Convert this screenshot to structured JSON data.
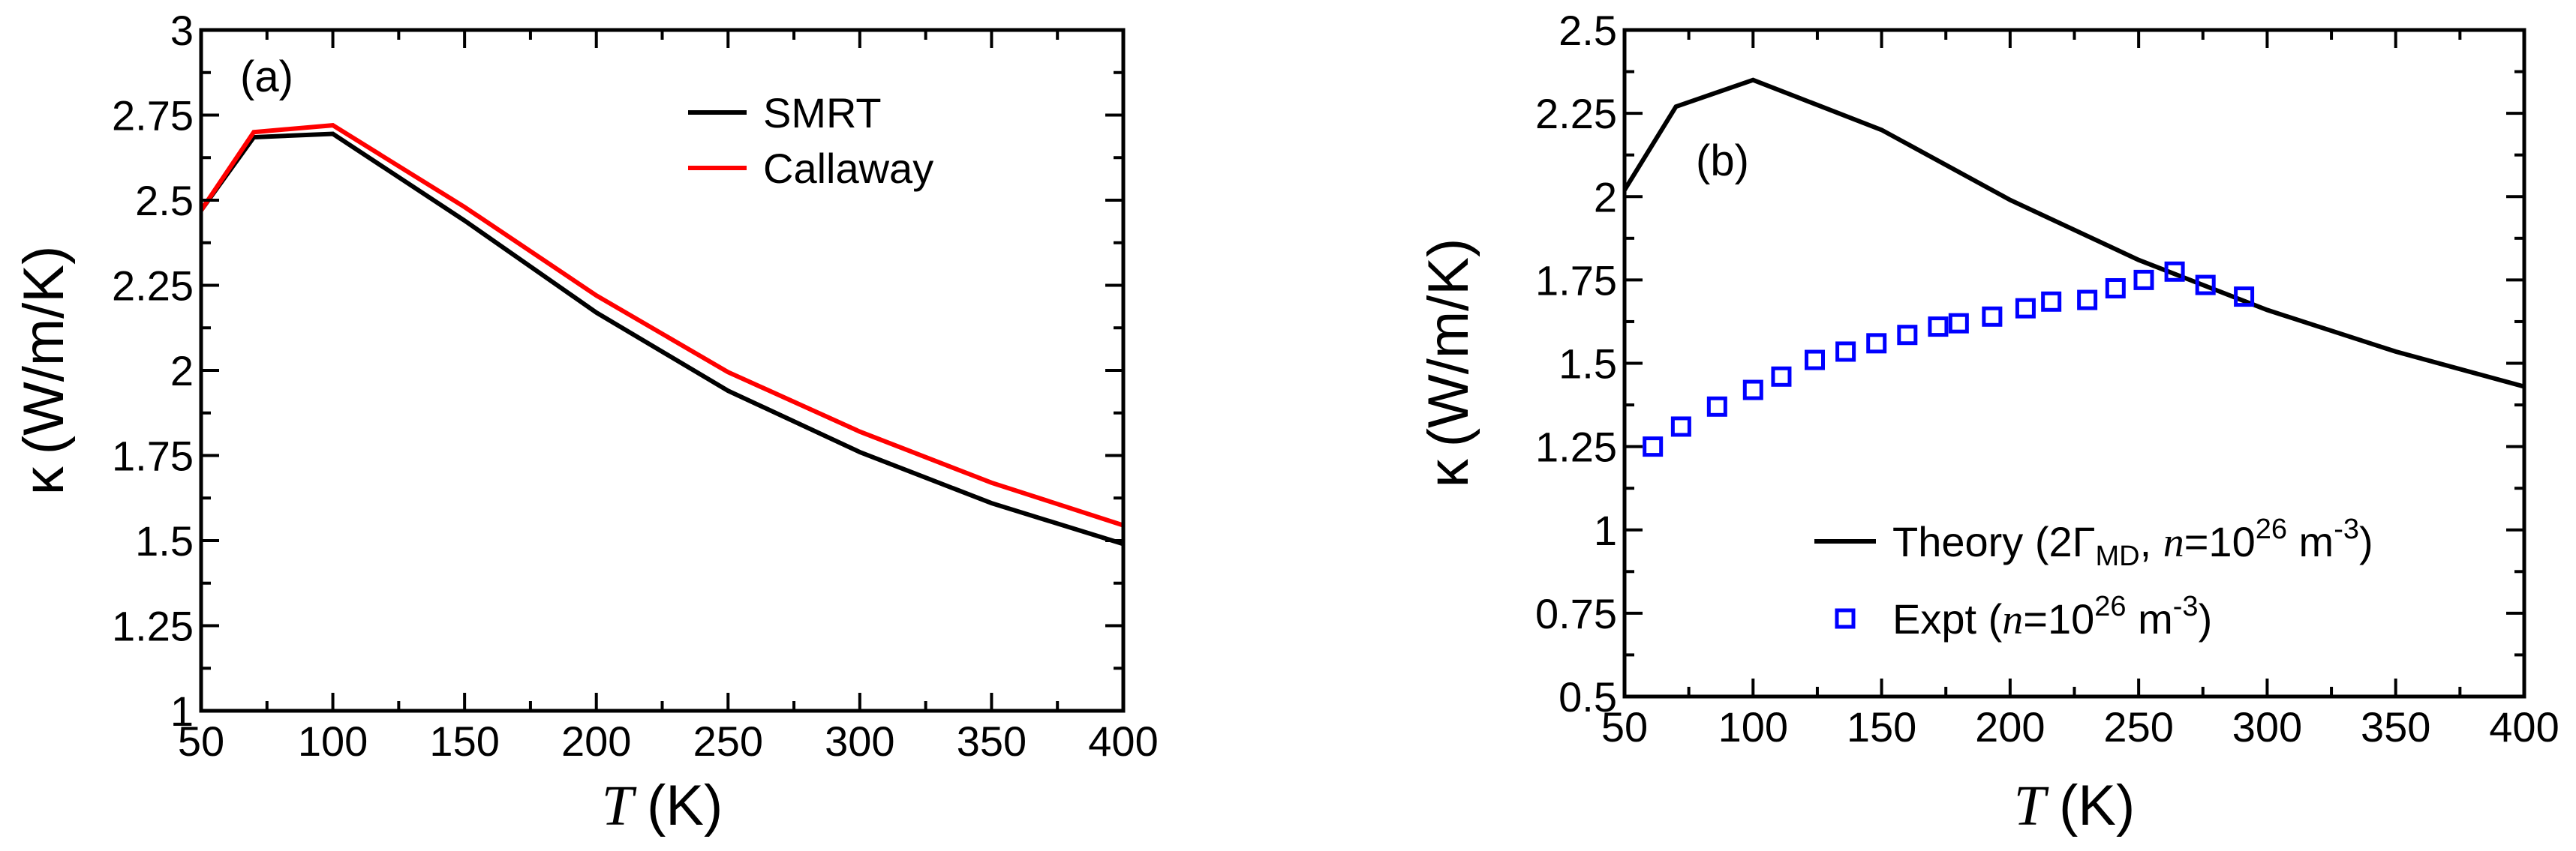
{
  "chart_data": [
    {
      "type": "line",
      "panel_label": "(a)",
      "xlabel_symbol": "T",
      "xlabel_unit": "(K)",
      "ylabel_symbol": "κ",
      "ylabel_unit": "(W/m/K)",
      "xlim": [
        50,
        400
      ],
      "ylim": [
        1,
        3
      ],
      "x_ticks": [
        "50",
        "100",
        "150",
        "200",
        "250",
        "300",
        "350",
        "400"
      ],
      "y_ticks": [
        "1",
        "1.25",
        "1.5",
        "1.75",
        "2",
        "2.25",
        "2.5",
        "2.75",
        "3"
      ],
      "legend_position": "top-right",
      "series": [
        {
          "name": "SMRT",
          "color": "#000000",
          "style": "line",
          "x": [
            50,
            70,
            100,
            150,
            200,
            250,
            300,
            350,
            400
          ],
          "y": [
            2.47,
            2.685,
            2.695,
            2.44,
            2.17,
            1.94,
            1.76,
            1.61,
            1.49
          ]
        },
        {
          "name": "Callaway",
          "color": "#ff0000",
          "style": "line",
          "x": [
            50,
            70,
            100,
            150,
            200,
            250,
            300,
            350,
            400
          ],
          "y": [
            2.47,
            2.7,
            2.72,
            2.48,
            2.22,
            1.995,
            1.82,
            1.67,
            1.545
          ]
        }
      ]
    },
    {
      "type": "line",
      "panel_label": "(b)",
      "xlabel_symbol": "T",
      "xlabel_unit": "(K)",
      "ylabel_symbol": "κ",
      "ylabel_unit": "(W/m/K)",
      "xlim": [
        50,
        400
      ],
      "ylim": [
        0.5,
        2.5
      ],
      "x_ticks": [
        "50",
        "100",
        "150",
        "200",
        "250",
        "300",
        "350",
        "400"
      ],
      "y_ticks": [
        "0.5",
        "0.75",
        "1",
        "1.25",
        "1.5",
        "1.75",
        "2",
        "2.25",
        "2.5"
      ],
      "legend_position": "bottom-right",
      "series": [
        {
          "name": "Theory",
          "legend": {
            "prefix": "Theory (2Γ",
            "sub": "MD",
            "mid": ", ",
            "var": "n",
            "eq": "=10",
            "exp": "26",
            "unit": " m",
            "unit_exp": "-3",
            "suffix": ")"
          },
          "color": "#000000",
          "style": "line",
          "x": [
            50,
            70,
            100,
            150,
            200,
            250,
            300,
            350,
            400
          ],
          "y": [
            2.02,
            2.27,
            2.35,
            2.2,
            1.99,
            1.81,
            1.66,
            1.535,
            1.43
          ]
        },
        {
          "name": "Expt",
          "legend": {
            "prefix": "Expt (",
            "var": "n",
            "eq": "=10",
            "exp": "26",
            "unit": " m",
            "unit_exp": "-3",
            "suffix": ")"
          },
          "color": "#0000ff",
          "style": "open-square",
          "x": [
            61,
            72,
            86,
            100,
            111,
            124,
            136,
            148,
            160,
            172,
            180,
            193,
            206,
            216,
            230,
            241,
            252,
            264,
            276,
            291
          ],
          "y": [
            1.25,
            1.31,
            1.37,
            1.42,
            1.46,
            1.51,
            1.535,
            1.56,
            1.585,
            1.61,
            1.62,
            1.64,
            1.665,
            1.685,
            1.69,
            1.725,
            1.75,
            1.775,
            1.735,
            1.7
          ]
        }
      ]
    }
  ]
}
